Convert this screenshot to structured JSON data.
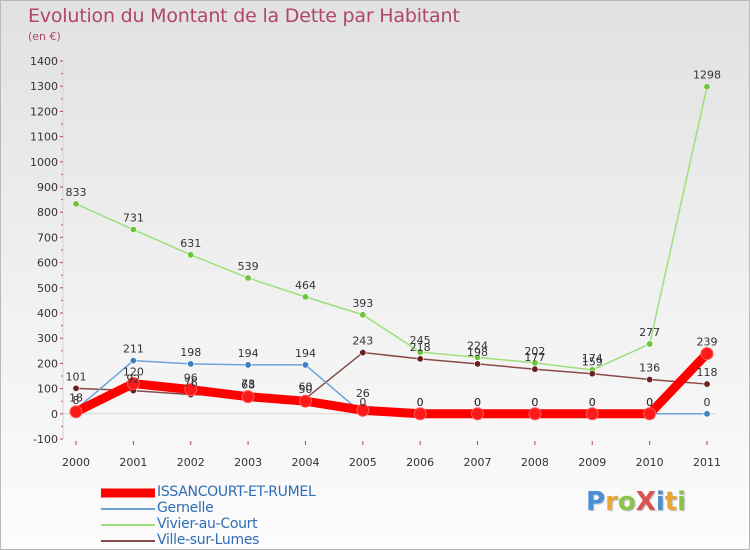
{
  "title": "Evolution du Montant de la Dette par Habitant",
  "unit_label": "(en €)",
  "brand": {
    "text": "ProXiti",
    "letter_colors": [
      "#4a8fd4",
      "#e8a735",
      "#8bc34a",
      "#d9534f",
      "#4a8fd4",
      "#e8a735",
      "#8bc34a"
    ]
  },
  "chart_data": {
    "type": "line",
    "title": "Evolution du Montant de la Dette par Habitant",
    "ylabel": "(en €)",
    "xlabel": "",
    "x": [
      "2000",
      "2001",
      "2002",
      "2003",
      "2004",
      "2005",
      "2006",
      "2007",
      "2008",
      "2009",
      "2010",
      "2011"
    ],
    "ylim": [
      -100,
      1400
    ],
    "yticks": [
      -100,
      0,
      100,
      200,
      300,
      400,
      500,
      600,
      700,
      800,
      900,
      1000,
      1100,
      1200,
      1300,
      1400
    ],
    "grid": false,
    "legend_position": "bottom-left",
    "series": [
      {
        "name": "ISSANCOURT-ET-RUMEL",
        "color": "#ff0000",
        "marker_color": "#ff1a1a",
        "emphasis": "thick",
        "values": [
          8,
          120,
          96,
          68,
          50,
          14,
          0,
          0,
          0,
          0,
          0,
          239
        ],
        "labels": [
          "8",
          "120",
          "96",
          "68",
          "50",
          "",
          "0",
          "0",
          "0",
          "0",
          "0",
          "239"
        ]
      },
      {
        "name": "Gernelle",
        "color": "#6fa3d8",
        "marker_color": "#3d7fc4",
        "values": [
          18,
          211,
          198,
          194,
          194,
          0,
          0,
          0,
          0,
          0,
          0,
          0
        ],
        "labels": [
          "18",
          "211",
          "198",
          "194",
          "194",
          "0",
          "0",
          "0",
          "0",
          "0",
          "0",
          "0"
        ]
      },
      {
        "name": "Vivier-au-Court",
        "color": "#9ee07a",
        "marker_color": "#6dc33a",
        "values": [
          833,
          731,
          631,
          539,
          464,
          393,
          245,
          224,
          202,
          174,
          277,
          1298
        ],
        "labels": [
          "833",
          "731",
          "631",
          "539",
          "464",
          "393",
          "245",
          "224",
          "202",
          "174",
          "277",
          "1298"
        ]
      },
      {
        "name": "Ville-sur-Lumes",
        "color": "#8a4a4a",
        "marker_color": "#6b1f1f",
        "values": [
          101,
          92,
          76,
          73,
          60,
          243,
          218,
          198,
          177,
          159,
          136,
          118
        ],
        "labels": [
          "101",
          "92",
          "76",
          "73",
          "60",
          "243",
          "218",
          "198",
          "177",
          "159",
          "136",
          "118"
        ]
      }
    ],
    "annotations": [
      "26"
    ]
  }
}
